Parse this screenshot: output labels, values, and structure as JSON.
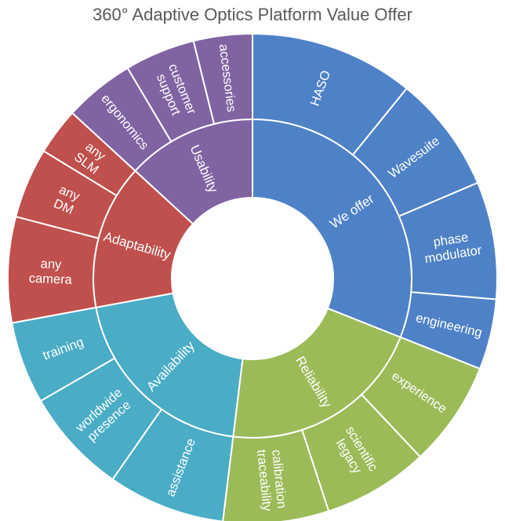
{
  "chart_data": {
    "type": "sunburst",
    "title": "360° Adaptive Optics Platform Value Offer",
    "categories": [
      {
        "name": "We offer",
        "color": "#4f81c7",
        "children": [
          {
            "name": "HASO",
            "value": 14
          },
          {
            "name": "Wavesuite",
            "value": 10
          },
          {
            "name": "phase modulator",
            "value": 10
          },
          {
            "name": "engineering",
            "value": 6
          }
        ]
      },
      {
        "name": "Reliability",
        "color": "#9bbb59",
        "children": [
          {
            "name": "experience",
            "value": 9
          },
          {
            "name": "scientific legacy",
            "value": 9
          },
          {
            "name": "calibration traceability",
            "value": 9
          }
        ]
      },
      {
        "name": "Availability",
        "color": "#4bacc6",
        "children": [
          {
            "name": "assistance",
            "value": 10
          },
          {
            "name": "worldwide presence",
            "value": 9
          },
          {
            "name": "training",
            "value": 7
          }
        ]
      },
      {
        "name": "Adaptability",
        "color": "#c0504d",
        "children": [
          {
            "name": "any camera",
            "value": 9
          },
          {
            "name": "any DM",
            "value": 6
          },
          {
            "name": "any SLM",
            "value": 4
          }
        ]
      },
      {
        "name": "Usability",
        "color": "#8064a2",
        "children": [
          {
            "name": "ergonomics",
            "value": 6
          },
          {
            "name": "customer support",
            "value": 6
          },
          {
            "name": "accessories",
            "value": 5
          }
        ]
      }
    ]
  }
}
